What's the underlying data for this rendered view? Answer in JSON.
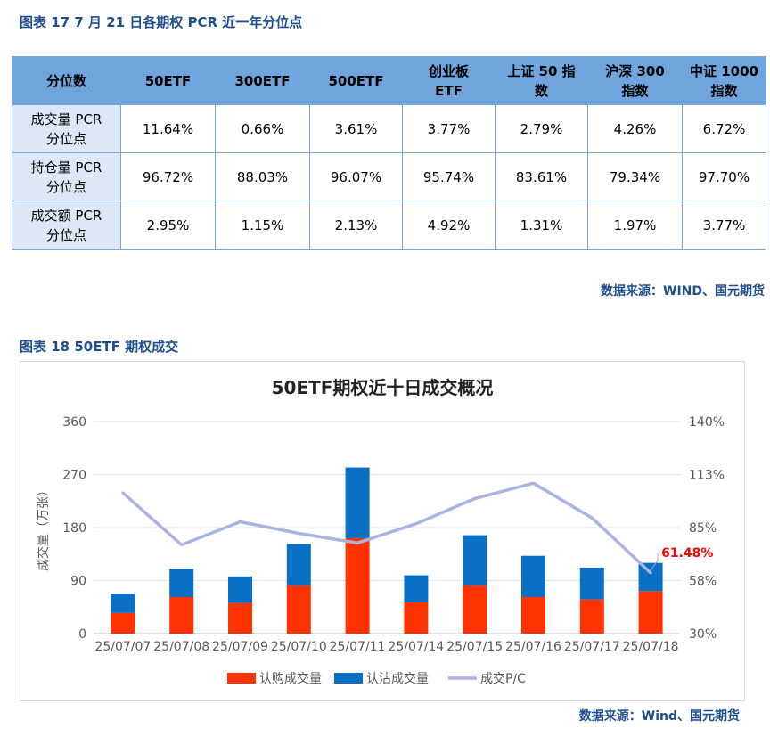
{
  "table_section": {
    "figure_title": "图表 17  7 月 21 日各期权 PCR 近一年分位点",
    "headers": [
      "分位数",
      "50ETF",
      "300ETF",
      "500ETF",
      "创业板\nETF",
      "上证 50 指\n数",
      "沪深 300\n指数",
      "中证 1000\n指数"
    ],
    "rows": [
      {
        "label": "成交量 PCR\n分位点",
        "values": [
          "11.64%",
          "0.66%",
          "3.61%",
          "3.77%",
          "2.79%",
          "4.26%",
          "6.72%"
        ]
      },
      {
        "label": "持仓量 PCR\n分位点",
        "values": [
          "96.72%",
          "88.03%",
          "96.07%",
          "95.74%",
          "83.61%",
          "79.34%",
          "97.70%"
        ]
      },
      {
        "label": "成交额 PCR\n分位点",
        "values": [
          "2.95%",
          "1.15%",
          "2.13%",
          "4.92%",
          "1.31%",
          "1.97%",
          "3.77%"
        ]
      }
    ],
    "source": "数据来源：WIND、国元期货"
  },
  "chart_section": {
    "figure_title": "图表 18  50ETF 期权成交",
    "source": "数据来源：Wind、国元期货"
  },
  "colors": {
    "call": "#ff3300",
    "put": "#0a70c6",
    "pc_line": "#a9b4e0",
    "header_bg": "#6fa4dc",
    "title_blue": "#1f4e8c",
    "annotation": "#ff0000"
  },
  "chart_data": {
    "type": "bar",
    "stacked": true,
    "title": "50ETF期权近十日成交概况",
    "categories": [
      "25/07/07",
      "25/07/08",
      "25/07/09",
      "25/07/10",
      "25/07/11",
      "25/07/14",
      "25/07/15",
      "25/07/16",
      "25/07/17",
      "25/07/18"
    ],
    "series": [
      {
        "name": "认购成交量",
        "type": "bar",
        "axis": "left",
        "values": [
          35,
          62,
          52,
          82,
          162,
          53,
          82,
          62,
          58,
          72
        ]
      },
      {
        "name": "认沽成交量",
        "type": "bar",
        "axis": "left",
        "values": [
          33,
          48,
          45,
          70,
          120,
          46,
          85,
          70,
          54,
          48
        ]
      },
      {
        "name": "成交P/C",
        "type": "line",
        "axis": "right",
        "values": [
          103,
          76,
          88,
          82,
          77,
          87,
          100,
          108,
          90,
          61.48
        ]
      }
    ],
    "ylabel": "成交量（万张）",
    "ylim": [
      0,
      360
    ],
    "yticks": [
      "0",
      "90",
      "180",
      "270",
      "360"
    ],
    "y2lim": [
      30,
      140
    ],
    "y2ticks": [
      "30%",
      "58%",
      "85%",
      "113%",
      "140%"
    ],
    "annotation": {
      "text": "61.48%",
      "index": 9
    },
    "grid": true,
    "legend": "bottom"
  }
}
